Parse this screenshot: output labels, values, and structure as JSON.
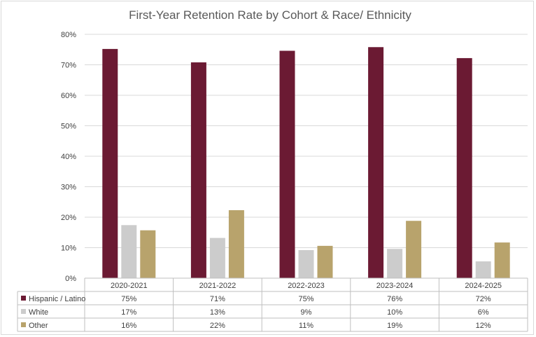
{
  "chart_data": {
    "type": "bar",
    "title": "First-Year Retention Rate by Cohort & Race/ Ethnicity",
    "categories": [
      "2020-2021",
      "2021-2022",
      "2022-2023",
      "2023-2024",
      "2024-2025"
    ],
    "ylim": [
      0,
      80
    ],
    "yticks": [
      "0%",
      "10%",
      "20%",
      "30%",
      "40%",
      "50%",
      "60%",
      "70%",
      "80%"
    ],
    "grid": true,
    "legend": "data-table-left",
    "series": [
      {
        "name": "Hispanic / Latino",
        "color": "#6b1a33",
        "values": [
          75.2,
          70.8,
          74.6,
          75.8,
          72.2
        ],
        "labels": [
          "75%",
          "71%",
          "75%",
          "76%",
          "72%"
        ]
      },
      {
        "name": "White",
        "color": "#cccccc",
        "values": [
          17.4,
          13.2,
          9.2,
          9.6,
          5.5
        ],
        "labels": [
          "17%",
          "13%",
          "9%",
          "10%",
          "6%"
        ]
      },
      {
        "name": "Other",
        "color": "#b8a36c",
        "values": [
          15.7,
          22.3,
          10.6,
          18.8,
          11.7
        ],
        "labels": [
          "16%",
          "22%",
          "11%",
          "19%",
          "12%"
        ]
      }
    ]
  }
}
